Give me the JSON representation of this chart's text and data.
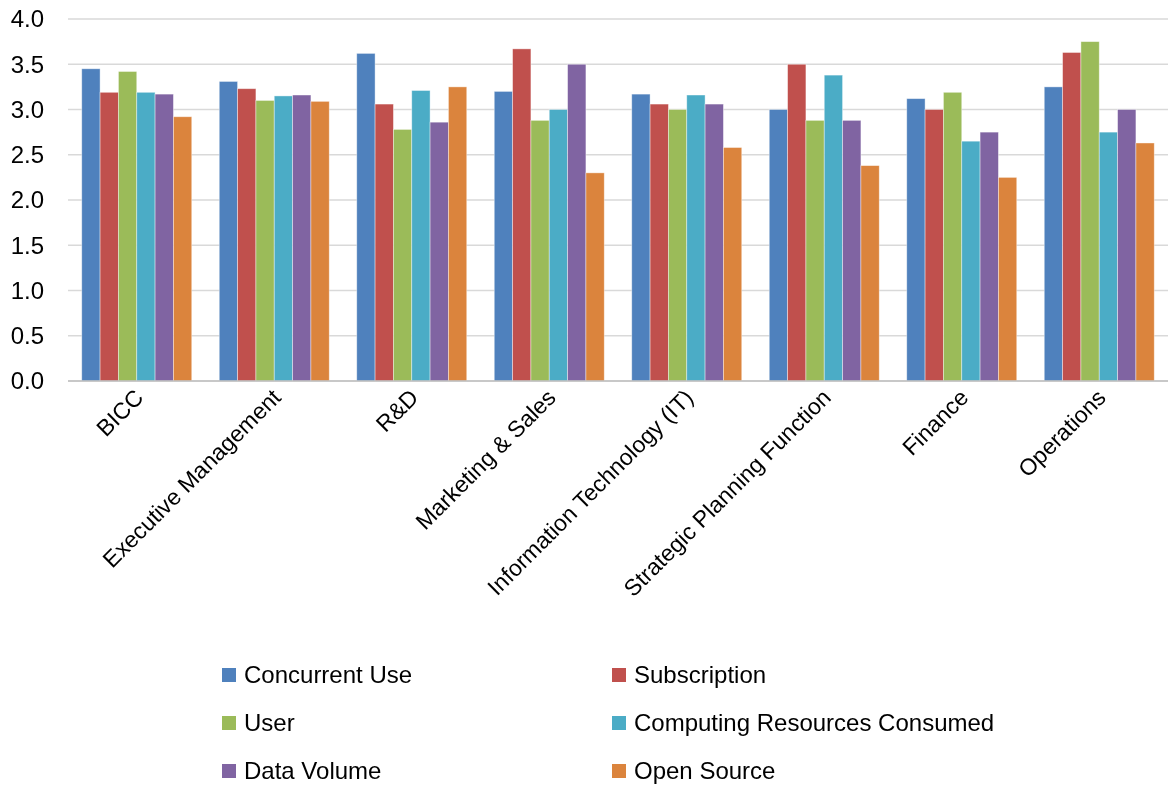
{
  "chart_data": {
    "type": "bar",
    "categories": [
      "BICC",
      "Executive Management",
      "R&D",
      "Marketing & Sales",
      "Information Technology (IT)",
      "Strategic Planning Function",
      "Finance",
      "Operations"
    ],
    "series": [
      {
        "name": "Concurrent Use",
        "color": "#4f81bd",
        "values": [
          3.45,
          3.31,
          3.62,
          3.2,
          3.17,
          3.0,
          3.12,
          3.25
        ]
      },
      {
        "name": "Subscription",
        "color": "#c0504d",
        "values": [
          3.19,
          3.23,
          3.06,
          3.67,
          3.06,
          3.5,
          3.0,
          3.63
        ]
      },
      {
        "name": "User",
        "color": "#9bbb59",
        "values": [
          3.42,
          3.1,
          2.78,
          2.88,
          3.0,
          2.88,
          3.19,
          3.75
        ]
      },
      {
        "name": "Computing Resources Consumed",
        "color": "#4bacc6",
        "values": [
          3.19,
          3.15,
          3.21,
          3.0,
          3.16,
          3.38,
          2.65,
          2.75
        ]
      },
      {
        "name": "Data Volume",
        "color": "#8064a2",
        "values": [
          3.17,
          3.16,
          2.86,
          3.5,
          3.06,
          2.88,
          2.75,
          3.0
        ]
      },
      {
        "name": "Open Source",
        "color": "#db843d",
        "values": [
          2.92,
          3.09,
          3.25,
          2.3,
          2.58,
          2.38,
          2.25,
          2.63
        ]
      }
    ],
    "ylim": [
      0,
      4
    ],
    "yticks": [
      {
        "value": 0,
        "label": "0.0"
      },
      {
        "value": 0.5,
        "label": "0.5"
      },
      {
        "value": 1,
        "label": "1.0"
      },
      {
        "value": 1.5,
        "label": "1.5"
      },
      {
        "value": 2,
        "label": "2.0"
      },
      {
        "value": 2.5,
        "label": "2.5"
      },
      {
        "value": 3,
        "label": "3.0"
      },
      {
        "value": 3.5,
        "label": "3.5"
      },
      {
        "value": 4,
        "label": "4.0"
      }
    ],
    "grid": "y",
    "legend": "bottom"
  }
}
